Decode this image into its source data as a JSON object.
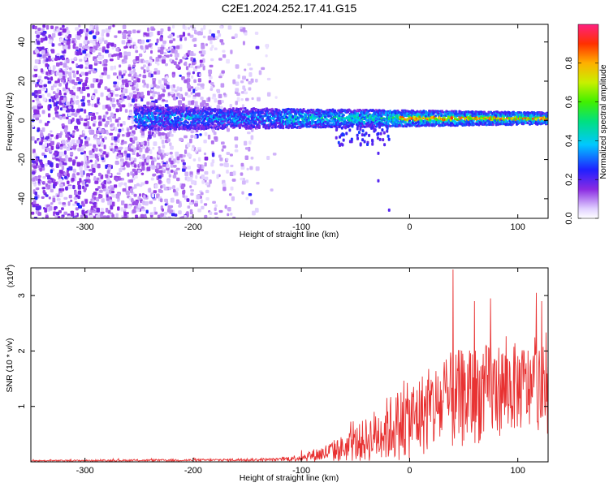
{
  "title": "C2E1.2024.252.17.41.G15",
  "charts": [
    {
      "type": "heatmap",
      "description": "Spectrogram: frequency vs height of straight line, color = normalized spectral amplitude",
      "xlabel": "Height of straight line (km)",
      "ylabel": "Frequency (Hz)",
      "xlim": [
        -350,
        128
      ],
      "ylim": [
        -50,
        49
      ],
      "x_ticks": [
        -300,
        -200,
        -100,
        0,
        100
      ],
      "y_ticks": [
        -40,
        -20,
        0,
        20,
        40
      ],
      "grid": false,
      "colorbar": {
        "label": "Normalized spectral amplitude",
        "range": [
          0,
          1
        ],
        "ticks": [
          0.0,
          0.2,
          0.4,
          0.6,
          0.8
        ]
      },
      "features": {
        "scatter_band_x": [
          -350,
          -120
        ],
        "main_band_start_x": -255,
        "main_band_center_hz": 1,
        "main_band_halfwidth_hz": [
          6,
          3
        ],
        "peak_region_x": [
          -10,
          128
        ]
      }
    },
    {
      "type": "line",
      "xlabel": "Height of straight line (km)",
      "ylabel": "SNR (10 * v/v)",
      "y_multiplier": "(x10^4)",
      "xlim": [
        -350,
        128
      ],
      "ylim": [
        0,
        3.5
      ],
      "x_ticks": [
        -300,
        -200,
        -100,
        0,
        100
      ],
      "y_ticks": [
        1,
        2,
        3
      ],
      "series_color": "#e83232",
      "profile": {
        "x": [
          -350,
          -200,
          -120,
          -100,
          -80,
          -60,
          -40,
          -20,
          0,
          20,
          40,
          60,
          80,
          100,
          128
        ],
        "baseline_e4": [
          0.02,
          0.03,
          0.04,
          0.08,
          0.15,
          0.25,
          0.4,
          0.6,
          0.75,
          0.95,
          1.1,
          1.2,
          1.3,
          1.35,
          1.3
        ],
        "spread_e4": [
          0.01,
          0.02,
          0.03,
          0.07,
          0.15,
          0.25,
          0.4,
          0.6,
          0.7,
          0.8,
          0.9,
          0.9,
          0.85,
          0.8,
          0.8
        ]
      },
      "spikes": [
        {
          "x": 40,
          "y_e4": 3.47
        },
        {
          "x": 75,
          "y_e4": 2.95
        },
        {
          "x": 117,
          "y_e4": 3.05
        },
        {
          "x": 122,
          "y_e4": 2.9
        },
        {
          "x": 60,
          "y_e4": 2.9
        }
      ]
    }
  ]
}
